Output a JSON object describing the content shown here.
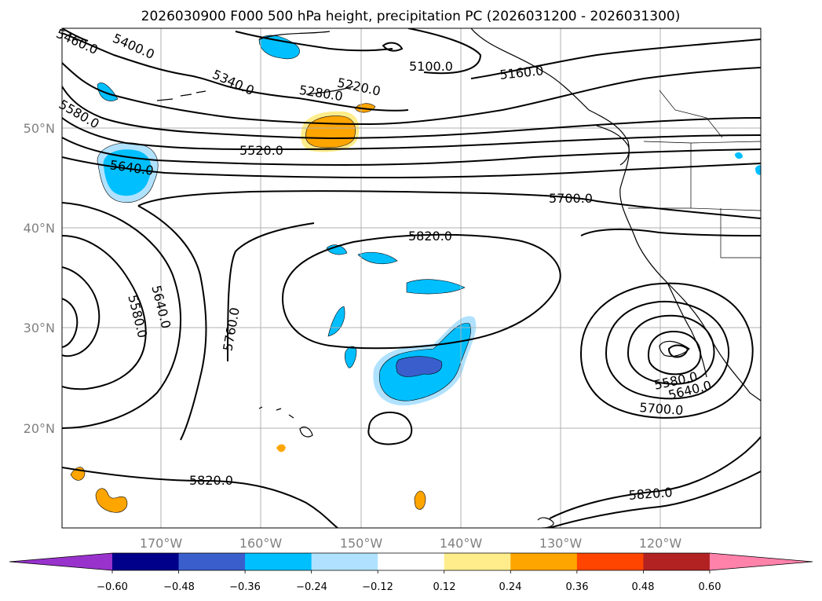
{
  "title": "2026030900 F000 500 hPa height, precipitation PC (2026031200 - 2026031300)",
  "lat_ticks": [
    "50°N",
    "40°N",
    "30°N",
    "20°N"
  ],
  "lon_ticks": [
    "170°W",
    "160°W",
    "150°W",
    "140°W",
    "130°W",
    "120°W"
  ],
  "contour_labels": [
    {
      "id": "c5400",
      "text": "5400.0"
    },
    {
      "id": "c5340",
      "text": "5340.0"
    },
    {
      "id": "c5280",
      "text": "5280.0"
    },
    {
      "id": "c5220",
      "text": "5220.0"
    },
    {
      "id": "c5100",
      "text": "5100.0"
    },
    {
      "id": "c5160",
      "text": "5160.0"
    },
    {
      "id": "c5460",
      "text": "5460.0"
    },
    {
      "id": "c5580a",
      "text": "5580.0"
    },
    {
      "id": "c5520",
      "text": "5520.0"
    },
    {
      "id": "c5640a",
      "text": "5640.0"
    },
    {
      "id": "c5700a",
      "text": "5700.0"
    },
    {
      "id": "c5820a",
      "text": "5820.0"
    },
    {
      "id": "c5760",
      "text": "5760.0"
    },
    {
      "id": "c5640b",
      "text": "5640.0"
    },
    {
      "id": "c5580b",
      "text": "5580.0"
    },
    {
      "id": "c5580c",
      "text": "5580.0"
    },
    {
      "id": "c5640c",
      "text": "5640.0"
    },
    {
      "id": "c5700b",
      "text": "5700.0"
    },
    {
      "id": "c5820b",
      "text": "5820.0"
    },
    {
      "id": "c5820c",
      "text": "5820.0"
    }
  ],
  "colorbar": {
    "ticks": [
      "−0.60",
      "−0.48",
      "−0.36",
      "−0.24",
      "−0.12",
      "0.12",
      "0.24",
      "0.36",
      "0.48",
      "0.60"
    ],
    "colors": [
      "#9932cc",
      "#00008b",
      "#3a5fcd",
      "#00bfff",
      "#b0e2ff",
      "#ffffff",
      "#ffec8b",
      "#ffa500",
      "#ff4500",
      "#b22222",
      "#ff82ab"
    ]
  },
  "colors": {
    "strong_negative": "#3a5fcd",
    "negative": "#00bfff",
    "weak_negative": "#b0e2ff",
    "weak_positive": "#ffec8b",
    "positive": "#ffa500",
    "grid": "#b0b0b0"
  }
}
